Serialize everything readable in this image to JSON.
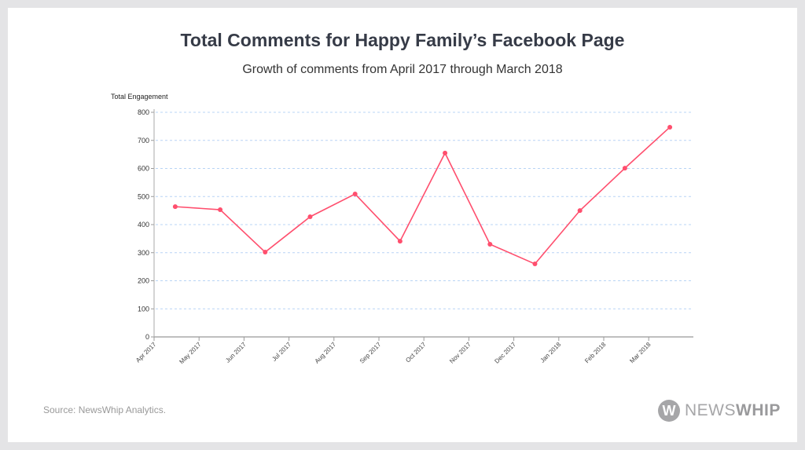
{
  "title": "Total Comments for Happy Family’s Facebook Page",
  "subtitle": "Growth of comments from April 2017 through March 2018",
  "source": "Source: NewsWhip Analytics.",
  "logo": {
    "name": "NEWSWHIP",
    "light": "NEWS",
    "bold": "WHIP",
    "letter": "W"
  },
  "chart_data": {
    "type": "line",
    "ylabel": "Total Engagement",
    "xlabel": "",
    "ylim": [
      0,
      800
    ],
    "yticks": [
      0,
      100,
      200,
      300,
      400,
      500,
      600,
      700,
      800
    ],
    "grid": "horizontal-dashed",
    "categories": [
      "Apr 2017",
      "May 2017",
      "Jun 2017",
      "Jul 2017",
      "Aug 2017",
      "Sep 2017",
      "Oct 2017",
      "Nov 2017",
      "Dec 2017",
      "Jan 2018",
      "Feb 2018",
      "Mar 2018"
    ],
    "values": [
      464,
      453,
      302,
      428,
      509,
      341,
      655,
      330,
      260,
      450,
      601,
      747
    ],
    "line_color": "#ff4f6e",
    "grid_color": "#b8d4f5"
  }
}
